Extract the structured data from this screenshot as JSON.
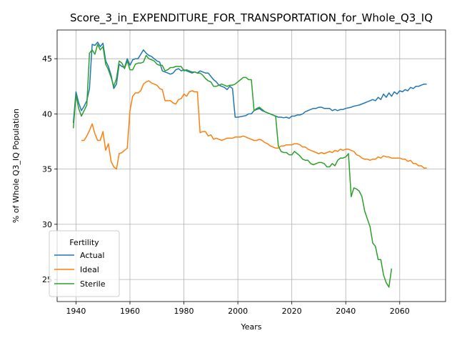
{
  "chart_data": {
    "type": "line",
    "title": "Score_3_in_EXPENDITURE_FOR_TRANSPORTATION_for_Whole_Q3_IQ",
    "xlabel": "Years",
    "ylabel": "% of Whole Q3_IQ Population",
    "xlim": [
      1933,
      2077
    ],
    "ylim": [
      23.0,
      47.6
    ],
    "xticks": [
      1940,
      1960,
      1980,
      2000,
      2020,
      2040,
      2060
    ],
    "yticks": [
      25,
      30,
      35,
      40,
      45
    ],
    "grid": true,
    "legend": {
      "title": "Fertility",
      "location": "lower-left"
    },
    "series": [
      {
        "name": "Actual",
        "color": "#1f77b4",
        "x": [
          1939,
          1940,
          1941,
          1942,
          1943,
          1944,
          1945,
          1946,
          1947,
          1948,
          1949,
          1950,
          1951,
          1952,
          1953,
          1954,
          1955,
          1956,
          1957,
          1958,
          1959,
          1960,
          1961,
          1962,
          1963,
          1964,
          1965,
          1966,
          1967,
          1968,
          1969,
          1970,
          1971,
          1972,
          1973,
          1974,
          1975,
          1976,
          1977,
          1978,
          1979,
          1980,
          1981,
          1982,
          1983,
          1984,
          1985,
          1986,
          1987,
          1988,
          1989,
          1990,
          1991,
          1992,
          1993,
          1994,
          1995,
          1996,
          1997,
          1998,
          1999,
          2000,
          2001,
          2002,
          2003,
          2004,
          2005,
          2006,
          2007,
          2008,
          2009,
          2010,
          2011,
          2012,
          2013,
          2014,
          2015,
          2016,
          2017,
          2018,
          2019,
          2020,
          2021,
          2022,
          2023,
          2024,
          2025,
          2026,
          2027,
          2028,
          2029,
          2030,
          2031,
          2032,
          2033,
          2034,
          2035,
          2036,
          2037,
          2038,
          2039,
          2040,
          2041,
          2042,
          2043,
          2044,
          2045,
          2046,
          2047,
          2048,
          2049,
          2050,
          2051,
          2052,
          2053,
          2054,
          2055,
          2056,
          2057,
          2058,
          2059,
          2060,
          2061,
          2062,
          2063,
          2064,
          2065,
          2066,
          2067,
          2068,
          2069,
          2070
        ],
        "values": [
          39.2,
          42.0,
          41.0,
          40.3,
          40.7,
          41.2,
          42.3,
          46.3,
          46.2,
          46.5,
          46.1,
          46.4,
          44.8,
          44.3,
          43.5,
          42.3,
          42.7,
          44.5,
          44.3,
          44.2,
          45.0,
          44.4,
          44.9,
          45.0,
          45.0,
          45.4,
          45.8,
          45.5,
          45.3,
          45.2,
          45.0,
          44.8,
          44.7,
          43.9,
          43.8,
          43.7,
          43.6,
          43.7,
          44.0,
          44.1,
          43.9,
          44.0,
          43.9,
          43.8,
          43.7,
          43.8,
          43.7,
          43.9,
          43.8,
          43.7,
          43.7,
          43.4,
          43.1,
          42.9,
          42.6,
          42.5,
          42.4,
          42.2,
          42.5,
          42.3,
          39.7,
          39.7,
          39.75,
          39.8,
          39.85,
          40.0,
          40.0,
          40.3,
          40.4,
          40.5,
          40.3,
          40.2,
          40.1,
          40.0,
          39.9,
          39.8,
          39.7,
          39.7,
          39.65,
          39.7,
          39.6,
          39.8,
          39.8,
          39.9,
          39.9,
          40.0,
          40.2,
          40.3,
          40.4,
          40.5,
          40.5,
          40.6,
          40.6,
          40.5,
          40.5,
          40.5,
          40.3,
          40.4,
          40.3,
          40.4,
          40.4,
          40.5,
          40.55,
          40.6,
          40.7,
          40.75,
          40.8,
          40.9,
          41.0,
          41.1,
          41.2,
          41.3,
          41.2,
          41.5,
          41.3,
          41.8,
          41.5,
          41.9,
          41.6,
          42.0,
          41.8,
          42.1,
          42.0,
          42.2,
          42.1,
          42.4,
          42.3,
          42.5,
          42.5,
          42.6,
          42.7,
          42.7
        ]
      },
      {
        "name": "Ideal",
        "color": "#ff7f0e",
        "x": [
          1942,
          1943,
          1944,
          1945,
          1946,
          1947,
          1948,
          1949,
          1950,
          1951,
          1952,
          1953,
          1954,
          1955,
          1956,
          1957,
          1958,
          1959,
          1960,
          1961,
          1962,
          1963,
          1964,
          1965,
          1966,
          1967,
          1968,
          1969,
          1970,
          1971,
          1972,
          1973,
          1974,
          1975,
          1976,
          1977,
          1978,
          1979,
          1980,
          1981,
          1982,
          1983,
          1984,
          1985,
          1986,
          1987,
          1988,
          1989,
          1990,
          1991,
          1992,
          1993,
          1994,
          1995,
          1996,
          1997,
          1998,
          1999,
          2000,
          2001,
          2002,
          2003,
          2004,
          2005,
          2006,
          2007,
          2008,
          2009,
          2010,
          2011,
          2012,
          2013,
          2014,
          2015,
          2016,
          2017,
          2018,
          2019,
          2020,
          2021,
          2022,
          2023,
          2024,
          2025,
          2026,
          2027,
          2028,
          2029,
          2030,
          2031,
          2032,
          2033,
          2034,
          2035,
          2036,
          2037,
          2038,
          2039,
          2040,
          2041,
          2042,
          2043,
          2044,
          2045,
          2046,
          2047,
          2048,
          2049,
          2050,
          2051,
          2052,
          2053,
          2054,
          2055,
          2056,
          2057,
          2058,
          2059,
          2060,
          2061,
          2062,
          2063,
          2064,
          2065,
          2066,
          2067,
          2068,
          2069,
          2070
        ],
        "values": [
          37.6,
          37.6,
          38.0,
          38.5,
          39.1,
          38.2,
          37.6,
          37.6,
          38.4,
          36.7,
          37.3,
          35.7,
          35.2,
          35.0,
          36.4,
          36.5,
          36.7,
          36.9,
          40.3,
          41.6,
          41.9,
          41.9,
          42.1,
          42.7,
          42.9,
          43.0,
          42.8,
          42.7,
          42.6,
          42.3,
          42.2,
          41.2,
          41.2,
          41.2,
          41.0,
          40.9,
          41.3,
          41.4,
          41.8,
          41.6,
          42.0,
          42.1,
          42.0,
          42.0,
          38.3,
          38.4,
          38.4,
          38.0,
          38.1,
          37.7,
          37.8,
          37.7,
          37.6,
          37.7,
          37.8,
          37.8,
          37.8,
          37.9,
          37.9,
          37.9,
          38.0,
          37.9,
          37.8,
          37.7,
          37.6,
          37.6,
          37.7,
          37.6,
          37.4,
          37.3,
          37.1,
          37.0,
          36.9,
          36.9,
          37.1,
          37.1,
          37.2,
          37.2,
          37.2,
          37.3,
          37.3,
          37.2,
          37.0,
          37.0,
          36.8,
          36.7,
          36.6,
          36.5,
          36.4,
          36.5,
          36.4,
          36.5,
          36.6,
          36.5,
          36.7,
          36.6,
          36.8,
          36.7,
          36.8,
          36.8,
          36.7,
          36.6,
          36.3,
          36.2,
          36.0,
          35.9,
          35.9,
          35.8,
          35.9,
          35.9,
          36.1,
          36.0,
          36.2,
          36.1,
          36.1,
          36.0,
          36.0,
          36.0,
          36.0,
          35.9,
          35.9,
          35.7,
          35.8,
          35.5,
          35.5,
          35.3,
          35.3,
          35.1,
          35.1
        ]
      },
      {
        "name": "Sterile",
        "color": "#2ca02c",
        "x": [
          1939,
          1940,
          1941,
          1942,
          1943,
          1944,
          1945,
          1946,
          1947,
          1948,
          1949,
          1950,
          1951,
          1952,
          1953,
          1954,
          1955,
          1956,
          1957,
          1958,
          1959,
          1960,
          1961,
          1962,
          1963,
          1964,
          1965,
          1966,
          1967,
          1968,
          1969,
          1970,
          1971,
          1972,
          1973,
          1974,
          1975,
          1976,
          1977,
          1978,
          1979,
          1980,
          1981,
          1982,
          1983,
          1984,
          1985,
          1986,
          1987,
          1988,
          1989,
          1990,
          1991,
          1992,
          1993,
          1994,
          1995,
          1996,
          1997,
          1998,
          1999,
          2000,
          2001,
          2002,
          2003,
          2004,
          2005,
          2006,
          2007,
          2008,
          2009,
          2010,
          2011,
          2012,
          2013,
          2014,
          2015,
          2016,
          2017,
          2018,
          2019,
          2020,
          2021,
          2022,
          2023,
          2024,
          2025,
          2026,
          2027,
          2028,
          2029,
          2030,
          2031,
          2032,
          2033,
          2034,
          2035,
          2036,
          2037,
          2038,
          2039,
          2040,
          2041,
          2042,
          2043,
          2044,
          2045,
          2046,
          2047,
          2048,
          2049,
          2050,
          2051,
          2052,
          2053,
          2054,
          2055,
          2056,
          2057
        ],
        "values": [
          38.7,
          41.7,
          40.5,
          39.8,
          40.3,
          40.8,
          45.5,
          45.8,
          45.4,
          46.3,
          45.8,
          46.1,
          44.5,
          44.0,
          43.3,
          42.5,
          43.2,
          44.8,
          44.6,
          44.1,
          44.8,
          44.0,
          44.0,
          44.5,
          44.6,
          44.6,
          44.7,
          45.3,
          45.0,
          44.9,
          44.8,
          44.5,
          44.4,
          44.4,
          43.9,
          44.0,
          44.2,
          44.2,
          44.3,
          44.3,
          44.3,
          43.9,
          44.0,
          43.9,
          43.8,
          43.8,
          43.7,
          43.7,
          43.5,
          43.2,
          43.0,
          42.9,
          42.5,
          42.5,
          42.6,
          42.7,
          42.6,
          42.5,
          42.6,
          42.6,
          42.7,
          42.9,
          43.1,
          43.3,
          43.3,
          43.1,
          43.1,
          40.3,
          40.5,
          40.6,
          40.4,
          40.2,
          40.1,
          40.0,
          39.9,
          39.8,
          37.1,
          36.6,
          36.5,
          36.5,
          36.3,
          36.3,
          36.6,
          36.4,
          36.2,
          35.9,
          35.8,
          35.8,
          35.5,
          35.4,
          35.5,
          35.6,
          35.6,
          35.5,
          35.2,
          35.2,
          35.5,
          35.3,
          35.8,
          36.0,
          36.0,
          36.1,
          36.4,
          32.5,
          33.3,
          33.2,
          33.0,
          32.5,
          31.2,
          30.5,
          29.8,
          28.3,
          28.0,
          26.8,
          26.8,
          25.4,
          24.7,
          24.3,
          26.0
        ]
      }
    ]
  }
}
